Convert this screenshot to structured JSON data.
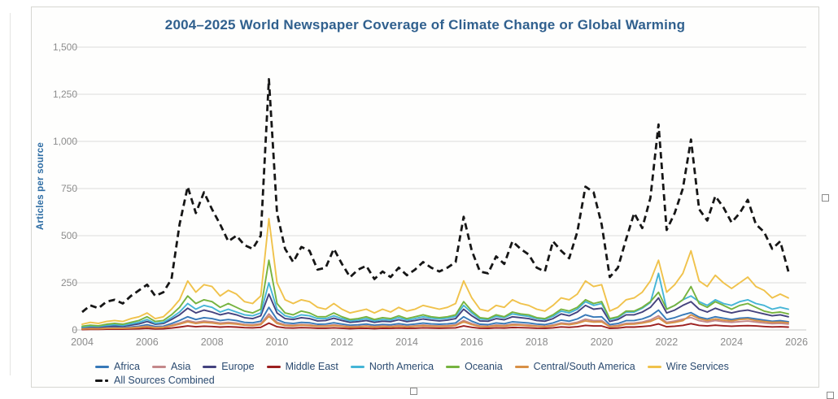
{
  "chart_data": {
    "type": "line",
    "title": "2004–2025 World Newspaper Coverage of Climate Change or Global Warming",
    "ylabel": "Articles per source",
    "xlabel": "",
    "xlim": [
      2004,
      2026
    ],
    "ylim": [
      0,
      1500
    ],
    "xticks": [
      2004,
      2006,
      2008,
      2010,
      2012,
      2014,
      2016,
      2018,
      2020,
      2022,
      2024,
      2026
    ],
    "yticks": [
      0,
      250,
      500,
      750,
      1000,
      1250,
      1500
    ],
    "ytick_labels": [
      "0",
      "250",
      "500",
      "750",
      "1,000",
      "1,250",
      "1,500"
    ],
    "grid": "horizontal",
    "legend_position": "bottom",
    "x_start": 2004,
    "x_step": 0.25,
    "legend_rows": [
      [
        "Africa",
        "Asia",
        "Europe",
        "Middle East",
        "North America",
        "Oceania",
        "Central/South America",
        "Wire Services"
      ],
      [
        "All Sources Combined"
      ]
    ],
    "series": [
      {
        "name": "Africa",
        "color": "#3779b8",
        "dash": false,
        "values": [
          8,
          10,
          9,
          12,
          14,
          12,
          16,
          20,
          28,
          18,
          20,
          34,
          50,
          70,
          55,
          65,
          60,
          50,
          55,
          50,
          40,
          38,
          46,
          120,
          55,
          38,
          34,
          40,
          38,
          30,
          31,
          38,
          31,
          25,
          27,
          31,
          25,
          29,
          27,
          33,
          27,
          31,
          36,
          32,
          30,
          32,
          37,
          70,
          46,
          30,
          28,
          37,
          33,
          43,
          40,
          37,
          31,
          28,
          37,
          52,
          46,
          58,
          80,
          68,
          70,
          28,
          34,
          49,
          50,
          58,
          74,
          105,
          55,
          65,
          80,
          92,
          68,
          58,
          70,
          62,
          55,
          62,
          65,
          58,
          52,
          46,
          49,
          43
        ]
      },
      {
        "name": "Asia",
        "color": "#c4888a",
        "dash": false,
        "values": [
          6,
          8,
          7,
          9,
          10,
          9,
          12,
          15,
          20,
          13,
          15,
          25,
          36,
          50,
          40,
          47,
          43,
          36,
          40,
          36,
          29,
          27,
          33,
          85,
          40,
          27,
          25,
          29,
          27,
          22,
          22,
          27,
          22,
          18,
          19,
          22,
          18,
          21,
          19,
          24,
          19,
          22,
          26,
          23,
          21,
          23,
          27,
          50,
          33,
          21,
          20,
          26,
          24,
          31,
          29,
          26,
          22,
          20,
          26,
          37,
          33,
          41,
          57,
          49,
          50,
          20,
          24,
          35,
          36,
          42,
          53,
          75,
          40,
          47,
          57,
          66,
          49,
          42,
          50,
          44,
          40,
          44,
          47,
          42,
          37,
          33,
          35,
          31
        ]
      },
      {
        "name": "Europe",
        "color": "#44427e",
        "dash": false,
        "values": [
          12,
          16,
          14,
          20,
          22,
          20,
          26,
          32,
          45,
          30,
          34,
          55,
          80,
          115,
          90,
          105,
          95,
          80,
          90,
          80,
          65,
          60,
          75,
          190,
          90,
          60,
          55,
          65,
          60,
          48,
          50,
          62,
          50,
          40,
          44,
          50,
          40,
          46,
          44,
          54,
          44,
          50,
          58,
          52,
          48,
          52,
          60,
          110,
          75,
          48,
          46,
          60,
          54,
          70,
          65,
          60,
          50,
          46,
          60,
          85,
          75,
          95,
          130,
          110,
          115,
          45,
          55,
          80,
          80,
          95,
          120,
          170,
          90,
          105,
          130,
          150,
          110,
          95,
          115,
          100,
          90,
          100,
          105,
          95,
          85,
          75,
          80,
          70
        ]
      },
      {
        "name": "Middle East",
        "color": "#9c1f1f",
        "dash": false,
        "values": [
          2,
          3,
          3,
          4,
          4,
          4,
          5,
          6,
          8,
          5,
          6,
          10,
          15,
          21,
          17,
          20,
          18,
          15,
          17,
          15,
          12,
          11,
          14,
          36,
          17,
          11,
          10,
          12,
          11,
          9,
          9,
          11,
          9,
          7,
          8,
          9,
          7,
          9,
          8,
          10,
          8,
          9,
          11,
          10,
          9,
          10,
          11,
          21,
          14,
          9,
          8,
          11,
          10,
          13,
          12,
          11,
          9,
          8,
          11,
          16,
          14,
          17,
          24,
          21,
          21,
          8,
          10,
          15,
          15,
          18,
          22,
          32,
          17,
          20,
          24,
          33,
          24,
          21,
          25,
          22,
          20,
          22,
          23,
          21,
          18,
          16,
          17,
          15
        ]
      },
      {
        "name": "North America",
        "color": "#45b5d6",
        "dash": false,
        "values": [
          15,
          20,
          18,
          24,
          28,
          24,
          32,
          40,
          55,
          35,
          40,
          65,
          95,
          140,
          110,
          130,
          120,
          95,
          110,
          95,
          80,
          75,
          90,
          250,
          110,
          75,
          65,
          80,
          75,
          60,
          60,
          75,
          60,
          48,
          52,
          60,
          48,
          55,
          52,
          65,
          52,
          60,
          70,
          62,
          58,
          62,
          72,
          130,
          90,
          58,
          55,
          72,
          65,
          85,
          78,
          72,
          60,
          55,
          72,
          100,
          90,
          110,
          150,
          130,
          140,
          55,
          65,
          95,
          95,
          115,
          145,
          300,
          110,
          130,
          160,
          180,
          150,
          130,
          160,
          140,
          130,
          150,
          160,
          140,
          130,
          110,
          120,
          110
        ]
      },
      {
        "name": "Oceania",
        "color": "#76b33f",
        "dash": false,
        "values": [
          20,
          25,
          22,
          30,
          35,
          30,
          40,
          50,
          70,
          45,
          50,
          80,
          120,
          180,
          140,
          160,
          150,
          120,
          140,
          120,
          100,
          90,
          110,
          370,
          140,
          90,
          80,
          100,
          90,
          70,
          70,
          90,
          70,
          55,
          60,
          70,
          55,
          65,
          60,
          75,
          60,
          70,
          80,
          70,
          65,
          70,
          80,
          150,
          100,
          65,
          60,
          80,
          70,
          95,
          85,
          80,
          65,
          60,
          80,
          110,
          100,
          120,
          160,
          140,
          150,
          60,
          70,
          100,
          100,
          120,
          150,
          200,
          110,
          130,
          160,
          230,
          140,
          120,
          150,
          130,
          110,
          130,
          140,
          120,
          100,
          90,
          95,
          85
        ]
      },
      {
        "name": "Central/South America",
        "color": "#d89046",
        "dash": false,
        "values": [
          5,
          7,
          6,
          8,
          9,
          8,
          10,
          13,
          17,
          11,
          13,
          21,
          31,
          43,
          34,
          40,
          37,
          31,
          34,
          31,
          25,
          23,
          28,
          72,
          34,
          23,
          21,
          25,
          23,
          19,
          19,
          23,
          19,
          15,
          16,
          19,
          15,
          18,
          16,
          20,
          16,
          19,
          22,
          20,
          18,
          20,
          23,
          43,
          28,
          18,
          17,
          22,
          20,
          26,
          25,
          22,
          19,
          17,
          22,
          32,
          28,
          35,
          48,
          42,
          43,
          17,
          20,
          30,
          31,
          36,
          45,
          64,
          34,
          40,
          49,
          80,
          60,
          50,
          58,
          52,
          48,
          55,
          58,
          50,
          45,
          40,
          42,
          38
        ]
      },
      {
        "name": "Wire Services",
        "color": "#f0c24b",
        "dash": false,
        "values": [
          30,
          40,
          35,
          45,
          50,
          45,
          60,
          70,
          90,
          60,
          70,
          110,
          160,
          260,
          200,
          240,
          230,
          180,
          210,
          190,
          150,
          140,
          180,
          590,
          250,
          160,
          140,
          160,
          150,
          120,
          110,
          140,
          110,
          90,
          100,
          110,
          90,
          110,
          95,
          120,
          100,
          110,
          130,
          120,
          110,
          120,
          140,
          260,
          170,
          110,
          100,
          130,
          120,
          160,
          140,
          130,
          110,
          100,
          130,
          170,
          160,
          190,
          260,
          230,
          240,
          100,
          120,
          160,
          170,
          200,
          260,
          370,
          200,
          240,
          300,
          420,
          260,
          230,
          290,
          250,
          220,
          250,
          280,
          230,
          210,
          170,
          190,
          170
        ]
      },
      {
        "name": "All Sources Combined",
        "color": "#161616",
        "dash": true,
        "values": [
          95,
          130,
          115,
          150,
          160,
          140,
          180,
          210,
          240,
          180,
          200,
          270,
          560,
          760,
          620,
          730,
          640,
          560,
          470,
          500,
          450,
          430,
          500,
          1330,
          620,
          430,
          360,
          440,
          420,
          320,
          330,
          430,
          350,
          280,
          320,
          340,
          270,
          310,
          280,
          330,
          290,
          320,
          360,
          330,
          310,
          330,
          360,
          600,
          420,
          310,
          300,
          390,
          350,
          470,
          430,
          400,
          330,
          310,
          470,
          420,
          380,
          520,
          760,
          730,
          560,
          280,
          330,
          480,
          620,
          540,
          700,
          1090,
          530,
          620,
          750,
          1010,
          640,
          580,
          710,
          650,
          570,
          620,
          690,
          560,
          520,
          430,
          470,
          310
        ]
      }
    ]
  }
}
